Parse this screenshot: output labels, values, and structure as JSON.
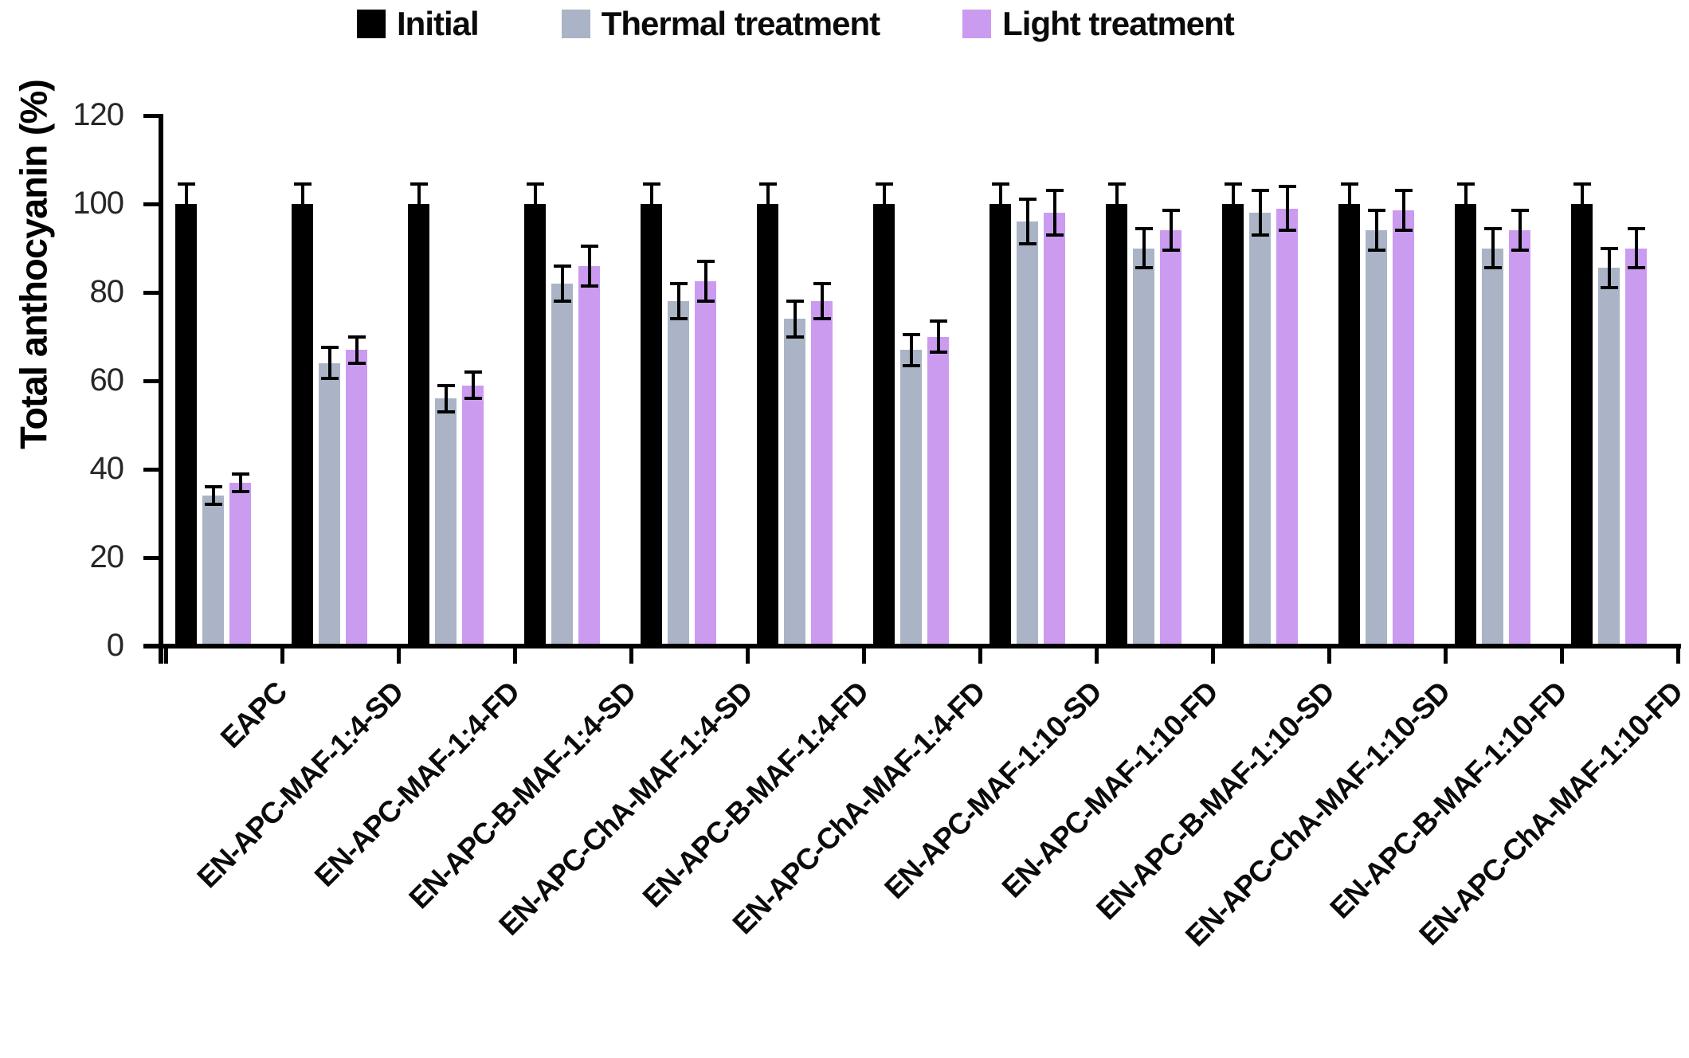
{
  "chart_data": {
    "type": "bar",
    "title": "",
    "ylabel": "Total anthocyanin (%)",
    "xlabel": "",
    "ylim": [
      0,
      120
    ],
    "yticks": [
      0,
      20,
      40,
      60,
      80,
      100,
      120
    ],
    "grid": false,
    "legend_position": "top",
    "error_bars": true,
    "categories": [
      "EAPC",
      "EN-APC-MAF-1:4-SD",
      "EN-APC-MAF-1:4-FD",
      "EN-APC-B-MAF-1:4-SD",
      "EN-APC-ChA-MAF-1:4-SD",
      "EN-APC-B-MAF-1:4-FD",
      "EN-APC-ChA-MAF-1:4-FD",
      "EN-APC-MAF-1:10-SD",
      "EN-APC-MAF-1:10-FD",
      "EN-APC-B-MAF-1:10-SD",
      "EN-APC-ChA-MAF-1:10-SD",
      "EN-APC-B-MAF-1:10-FD",
      "EN-APC-ChA-MAF-1:10-FD"
    ],
    "series": [
      {
        "name": "Initial",
        "color": "#000000",
        "values": [
          100,
          100,
          100,
          100,
          100,
          100,
          100,
          100,
          100,
          100,
          100,
          100,
          100
        ],
        "errors": [
          4.5,
          4.5,
          4.5,
          4.5,
          4.5,
          4.5,
          4.5,
          4.5,
          4.5,
          4.5,
          4.5,
          4.5,
          4.5
        ]
      },
      {
        "name": "Thermal treatment",
        "color": "#aab4c6",
        "values": [
          34,
          64,
          56,
          82,
          78,
          74,
          67,
          96,
          90,
          98,
          94,
          90,
          85.5
        ],
        "errors": [
          2,
          3.5,
          3,
          4,
          4,
          4,
          3.5,
          5,
          4.5,
          5,
          4.5,
          4.5,
          4.5
        ]
      },
      {
        "name": "Light treatment",
        "color": "#cb9bf0",
        "values": [
          37,
          67,
          59,
          86,
          82.5,
          78,
          70,
          98,
          94,
          99,
          98.5,
          94,
          90
        ],
        "errors": [
          2,
          3,
          3,
          4.5,
          4.5,
          4,
          3.5,
          5,
          4.5,
          5,
          4.5,
          4.5,
          4.5
        ]
      }
    ]
  }
}
